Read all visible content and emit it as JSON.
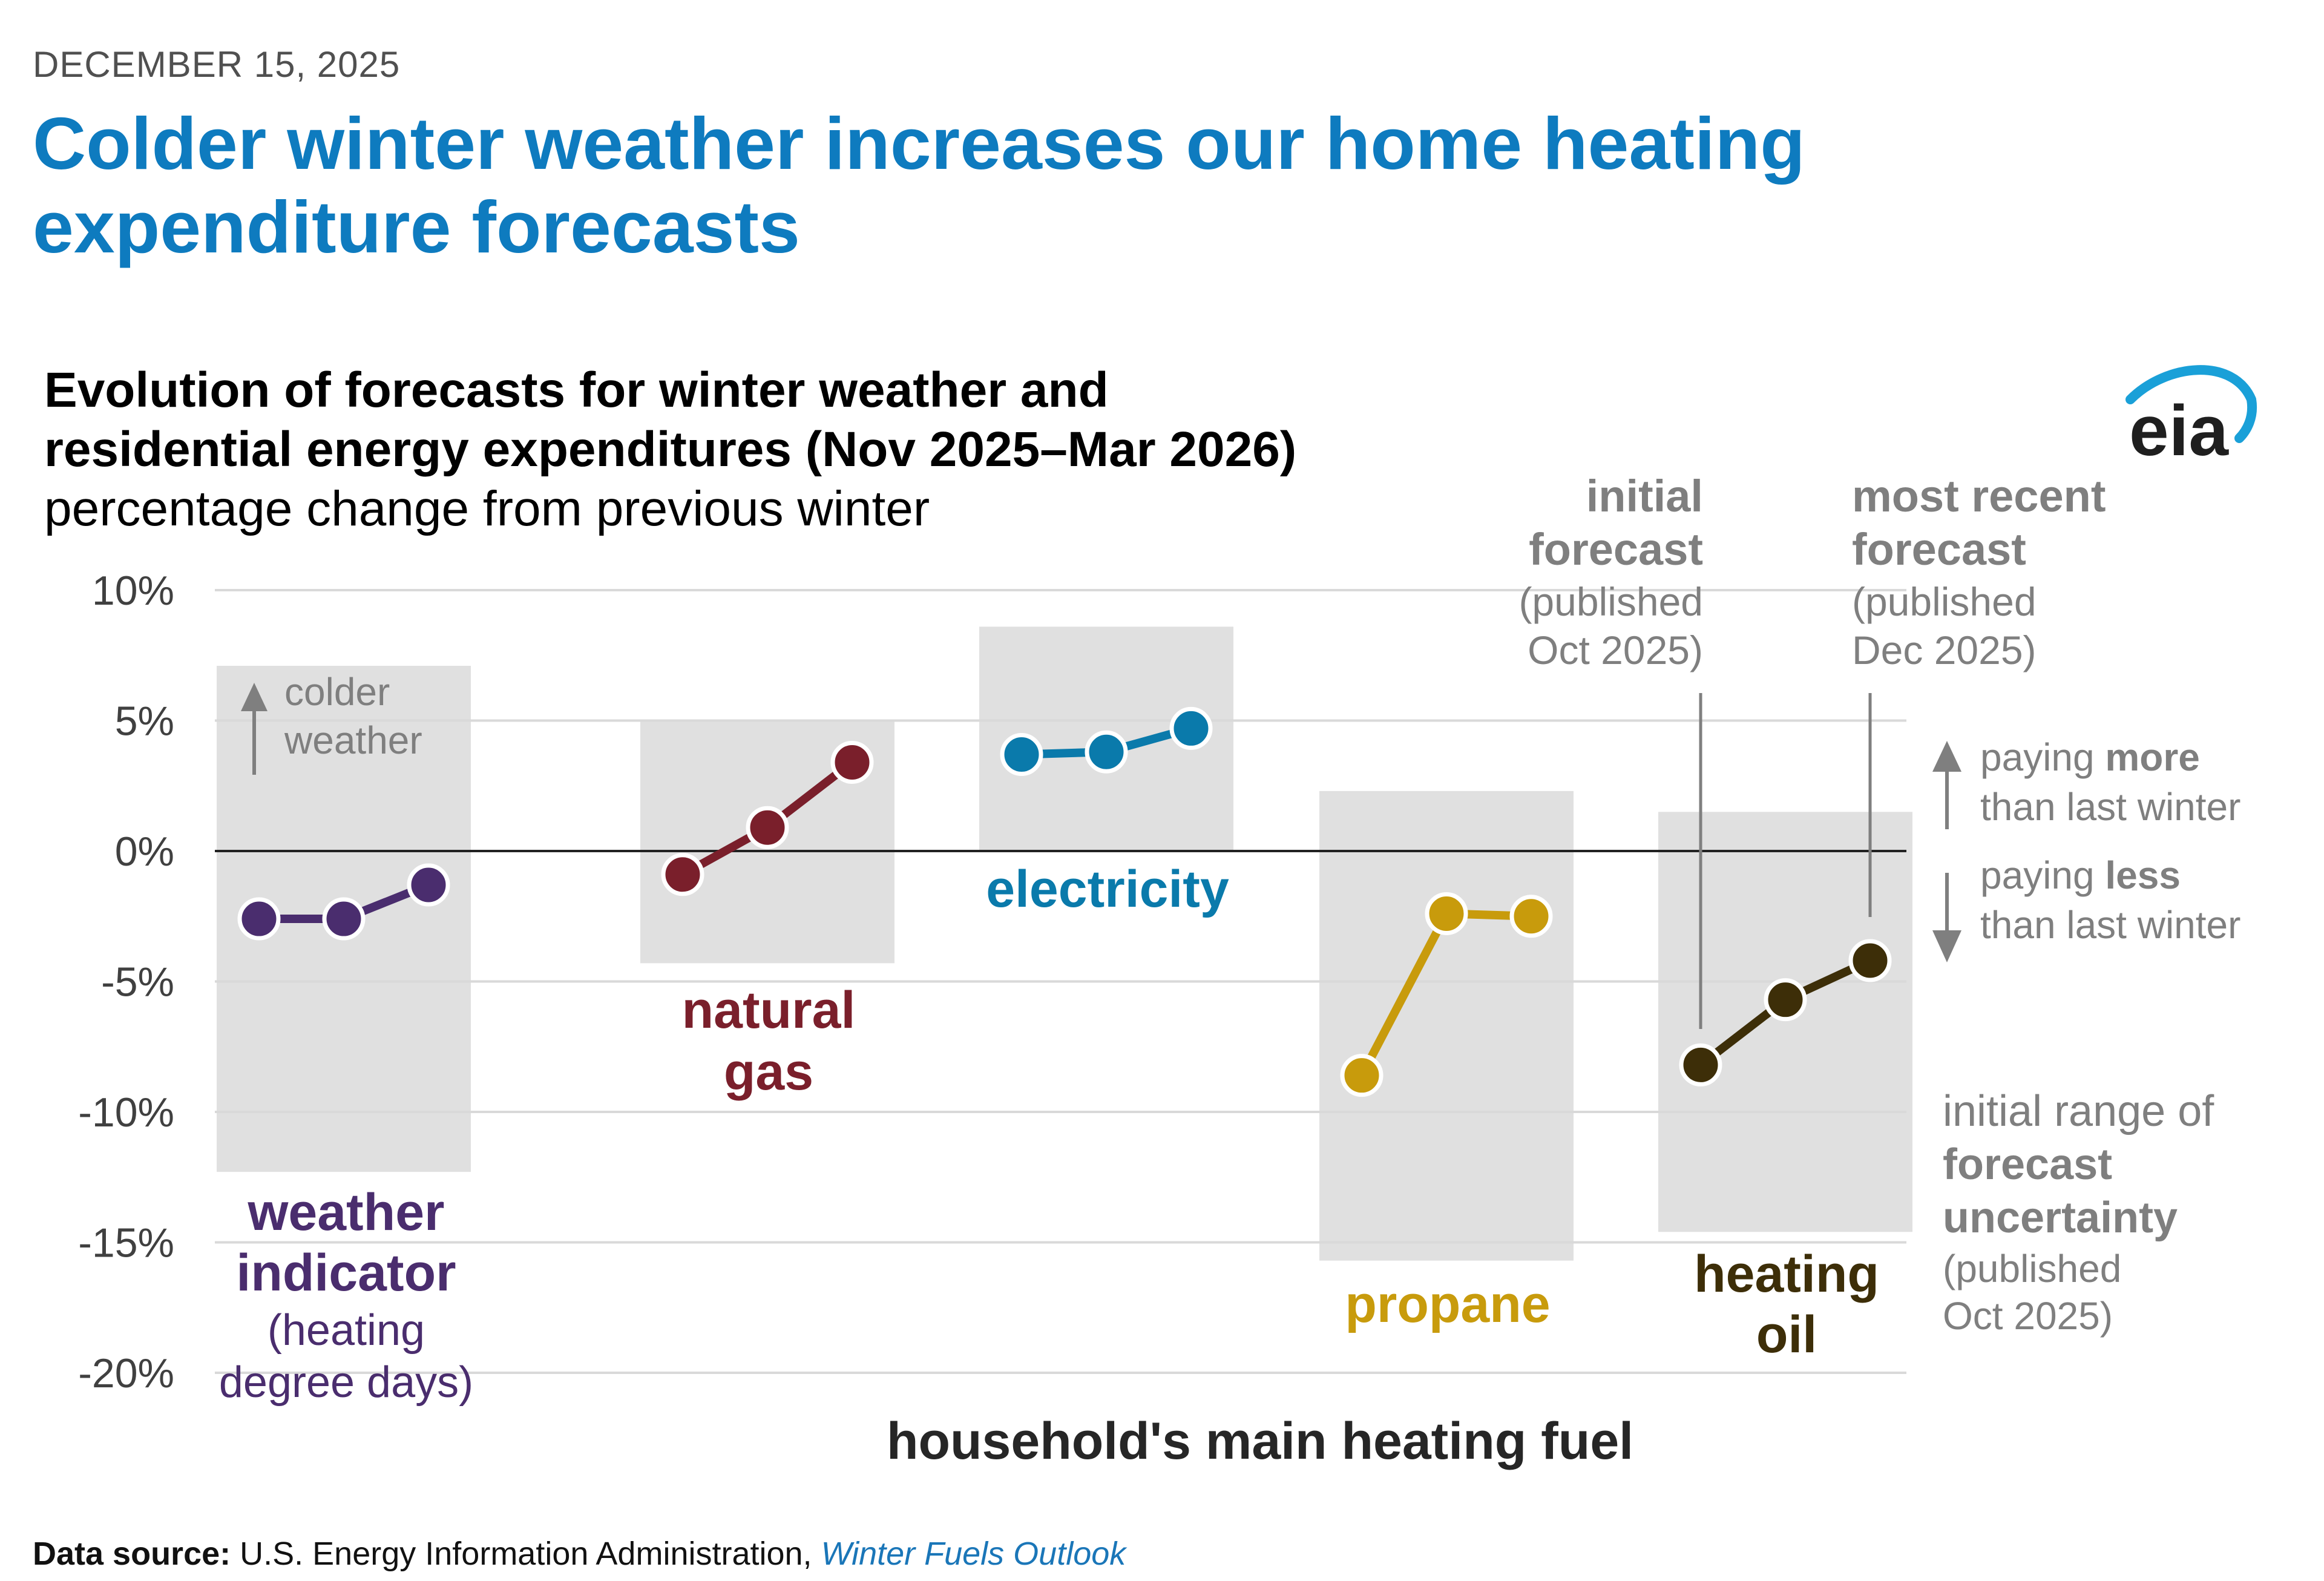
{
  "header": {
    "date": "DECEMBER 15, 2025",
    "headline": "Colder winter weather increases our home heating expenditure forecasts"
  },
  "footer": {
    "label": "Data source:",
    "source": "U.S. Energy Information Administration,",
    "publication": "Winter Fuels Outlook"
  },
  "logo": {
    "text": "eia"
  },
  "chart_data": {
    "type": "line",
    "title_line1": "Evolution of forecasts for winter weather and",
    "title_line2": "residential energy expenditures (Nov 2025–Mar 2026)",
    "subtitle": "percentage change from previous winter",
    "xlabel": "household's main heating fuel",
    "ylabel": "",
    "ylim": [
      -20,
      10
    ],
    "yticks": [
      10,
      5,
      0,
      -5,
      -10,
      -15,
      -20
    ],
    "ytick_labels": [
      "10%",
      "5%",
      "0%",
      "-5%",
      "-10%",
      "-15%",
      "-20%"
    ],
    "series": [
      {
        "name": "weather indicator",
        "label_lines": [
          "weather",
          "indicator"
        ],
        "sub_lines": [
          "(heating",
          "degree days)"
        ],
        "color": "#4a2d6e",
        "values": [
          -2.6,
          -2.6,
          -1.3
        ],
        "uncertainty_range": [
          -12.3,
          7.1
        ]
      },
      {
        "name": "natural gas",
        "label_lines": [
          "natural",
          "gas"
        ],
        "sub_lines": [],
        "color": "#7a1f2b",
        "values": [
          -0.9,
          0.9,
          3.4
        ],
        "uncertainty_range": [
          -4.3,
          5.0
        ]
      },
      {
        "name": "electricity",
        "label_lines": [
          "electricity"
        ],
        "sub_lines": [],
        "color": "#0a7aab",
        "values": [
          3.7,
          3.8,
          4.7
        ],
        "uncertainty_range": [
          0.0,
          8.6
        ]
      },
      {
        "name": "propane",
        "label_lines": [
          "propane"
        ],
        "sub_lines": [],
        "color": "#c89b0c",
        "values": [
          -8.6,
          -2.4,
          -2.5
        ],
        "uncertainty_range": [
          -15.7,
          2.3
        ]
      },
      {
        "name": "heating oil",
        "label_lines": [
          "heating",
          "oil"
        ],
        "sub_lines": [],
        "color": "#3d2e08",
        "values": [
          -8.2,
          -5.7,
          -4.2
        ],
        "uncertainty_range": [
          -14.6,
          1.5
        ]
      }
    ],
    "annotations": {
      "colder_weather": [
        "colder",
        "weather"
      ],
      "initial_forecast": [
        "initial",
        "forecast"
      ],
      "initial_forecast_pub": [
        "(published",
        "Oct 2025)"
      ],
      "recent_forecast": [
        "most recent",
        "forecast"
      ],
      "recent_forecast_pub": [
        "(published",
        "Dec 2025)"
      ],
      "paying_more": {
        "pre": "paying ",
        "bold": "more",
        "line2": "than last winter"
      },
      "paying_less": {
        "pre": "paying ",
        "bold": "less",
        "line2": "than last winter"
      },
      "range_note": [
        "initial range of"
      ],
      "range_note_bold": [
        "forecast",
        "uncertainty"
      ],
      "range_note_pub": [
        "(published",
        "Oct 2025)"
      ]
    },
    "colors": {
      "grid": "#d9d9d9",
      "band": "#e0e0e0",
      "zero_line": "#222222",
      "annotation": "#7f7f7f"
    }
  }
}
